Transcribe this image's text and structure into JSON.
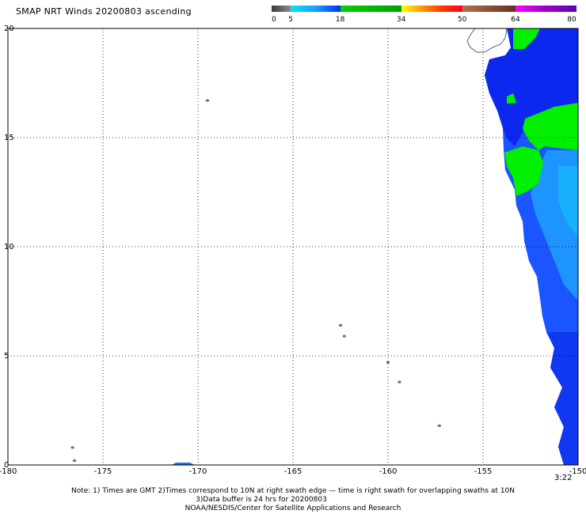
{
  "title": "SMAP NRT Winds 20200803 ascending",
  "colorbar": {
    "labels": [
      "0",
      "5",
      "18",
      "34",
      "50",
      "64",
      "80"
    ],
    "label_values": [
      0,
      5,
      18,
      34,
      50,
      64,
      80
    ],
    "segments": [
      {
        "from": 0,
        "to": 5,
        "colors": [
          "#3b3b3b",
          "#8a8a8a"
        ]
      },
      {
        "from": 5,
        "to": 18,
        "colors": [
          "#00e6f0",
          "#1aa0ff",
          "#0030ff"
        ]
      },
      {
        "from": 18,
        "to": 34,
        "colors": [
          "#00d200",
          "#00a000"
        ]
      },
      {
        "from": 34,
        "to": 50,
        "colors": [
          "#ffff00",
          "#ff9900",
          "#ff3300",
          "#ff0020"
        ]
      },
      {
        "from": 50,
        "to": 64,
        "colors": [
          "#b07050",
          "#6a3018"
        ]
      },
      {
        "from": 64,
        "to": 80,
        "colors": [
          "#ff00ff",
          "#9a00c8",
          "#6000b0"
        ]
      }
    ]
  },
  "axes": {
    "lon_labels": [
      "-180",
      "-175",
      "-170",
      "-165",
      "-160",
      "-155",
      "-150"
    ],
    "lon_values": [
      -180,
      -175,
      -170,
      -165,
      -160,
      -155,
      -150
    ],
    "lat_labels": [
      "0",
      "5",
      "10",
      "15",
      "20"
    ],
    "lat_values": [
      0,
      5,
      10,
      15,
      20
    ],
    "lon_range": [
      -180,
      -150
    ],
    "lat_range": [
      0,
      20
    ],
    "grid": true
  },
  "time_label": "3:22",
  "notes": {
    "line1": "Note: 1) Times are GMT 2)Times correspond to 10N at right swath edge — time is right swath for overlapping swaths at 10N",
    "line2": "3)Data buffer is 24 hrs for 20200803",
    "line3": "NOAA/NESDIS/Center for Satellite Applications and Research"
  },
  "colors": {
    "land": "#707070",
    "wind_blue": "#1030f0",
    "wind_mid_blue": "#1a70ff",
    "wind_light_blue": "#18a8ff",
    "wind_green": "#00f000"
  },
  "land_features": [
    {
      "name": "island",
      "lon": -169.5,
      "lat": 16.7
    },
    {
      "name": "island",
      "lon": -162.5,
      "lat": 6.4
    },
    {
      "name": "island",
      "lon": -162.3,
      "lat": 5.9
    },
    {
      "name": "island",
      "lon": -159.4,
      "lat": 3.8
    },
    {
      "name": "island",
      "lon": -157.3,
      "lat": 1.8
    },
    {
      "name": "island",
      "lon": -160.0,
      "lat": 4.7
    },
    {
      "name": "island",
      "lon": -176.6,
      "lat": 0.8
    },
    {
      "name": "island",
      "lon": -176.5,
      "lat": 0.2
    }
  ]
}
